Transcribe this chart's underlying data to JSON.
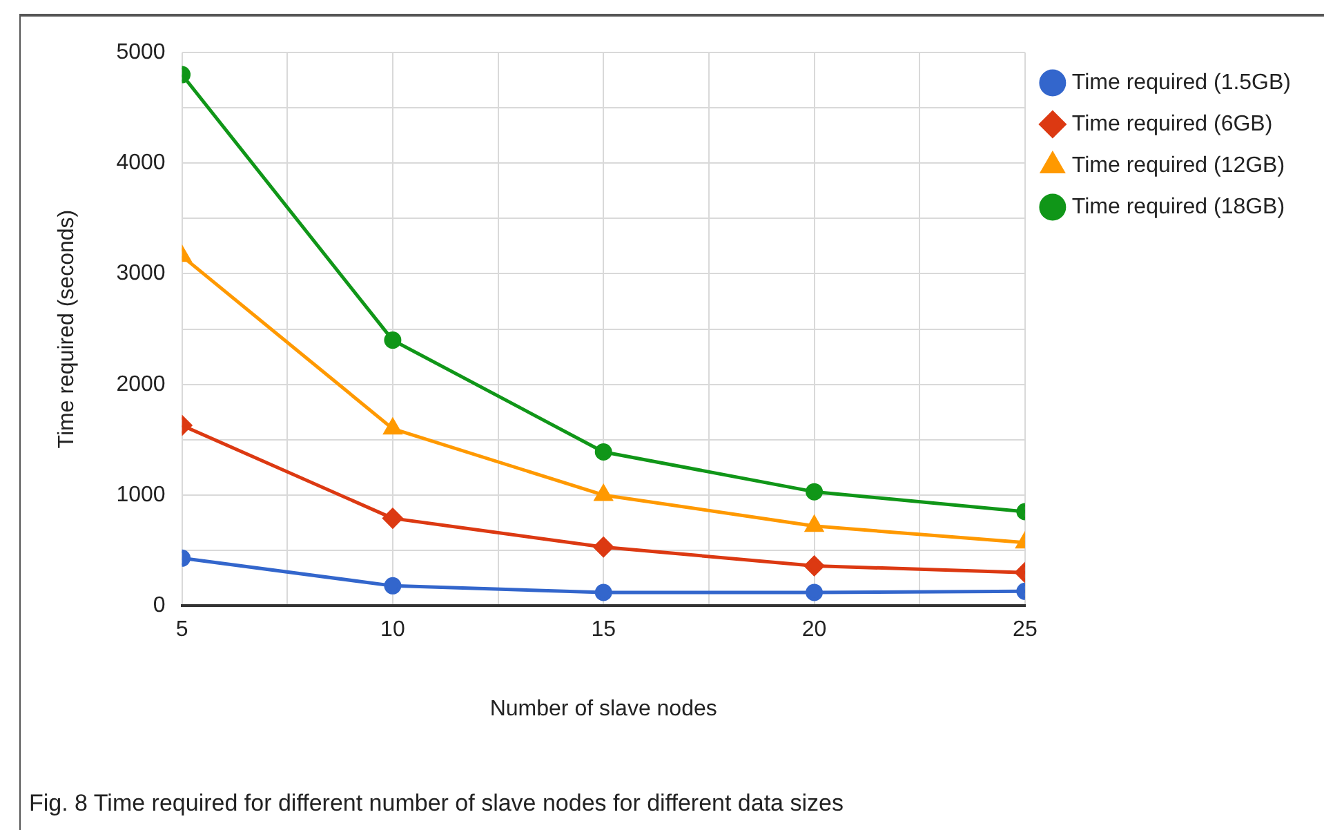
{
  "chart_data": {
    "type": "line",
    "xlabel": "Number of slave nodes",
    "ylabel": "Time required (seconds)",
    "x": [
      5,
      10,
      15,
      20,
      25
    ],
    "series": [
      {
        "name": "Time required (1.5GB)",
        "color": "#3366cc",
        "marker": "circle",
        "values": [
          430,
          180,
          120,
          120,
          130
        ]
      },
      {
        "name": "Time required (6GB)",
        "color": "#dc3912",
        "marker": "diamond",
        "values": [
          1630,
          790,
          530,
          360,
          300
        ]
      },
      {
        "name": "Time required (12GB)",
        "color": "#ff9900",
        "marker": "triangle",
        "values": [
          3160,
          1600,
          1000,
          720,
          570
        ]
      },
      {
        "name": "Time required (18GB)",
        "color": "#109618",
        "marker": "circle",
        "values": [
          4800,
          2400,
          1390,
          1030,
          850
        ]
      }
    ],
    "xlim": [
      5,
      25
    ],
    "xticks": [
      5,
      {
        "value": 7.5,
        "label": null
      },
      10,
      {
        "value": 12.5,
        "label": null
      },
      15,
      {
        "value": 17.5,
        "label": null
      },
      20,
      {
        "value": 22.5,
        "label": null
      },
      25
    ],
    "ylim": [
      0,
      5000
    ],
    "yticks": [
      0,
      {
        "value": 500,
        "label": null
      },
      1000,
      {
        "value": 1500,
        "label": null
      },
      2000,
      {
        "value": 2500,
        "label": null
      },
      3000,
      {
        "value": 3500,
        "label": null
      },
      4000,
      {
        "value": 4500,
        "label": null
      },
      5000
    ],
    "grid": true,
    "legend": "top right",
    "line_style": "solid",
    "annotations": [
      "Fig. 8  Time required for different number of slave nodes for different data sizes"
    ]
  }
}
